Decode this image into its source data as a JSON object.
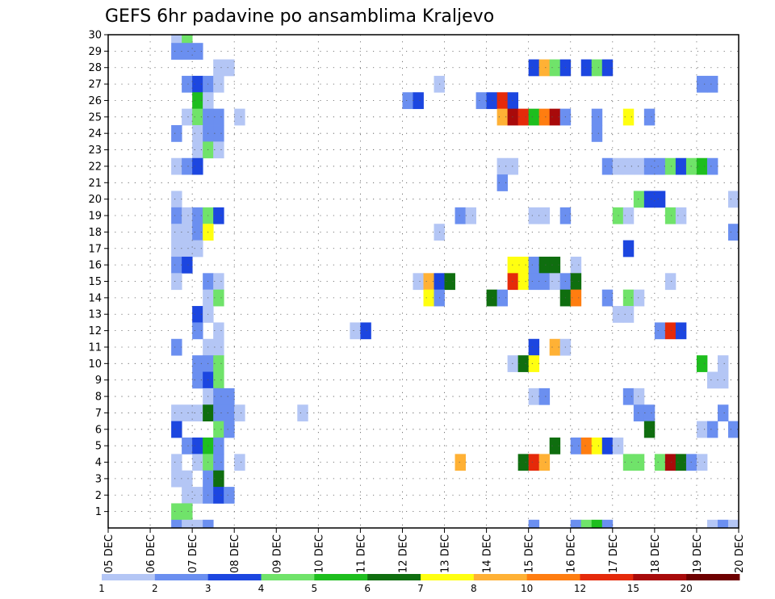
{
  "chart_data": {
    "type": "heatmap",
    "title": "GEFS 6hr padavine po ansamblima Kraljevo",
    "y_tick_labels": [
      "1",
      "2",
      "3",
      "4",
      "5",
      "6",
      "7",
      "8",
      "9",
      "10",
      "11",
      "12",
      "13",
      "14",
      "15",
      "16",
      "17",
      "18",
      "19",
      "20",
      "21",
      "22",
      "23",
      "24",
      "25",
      "26",
      "27",
      "28",
      "29",
      "30"
    ],
    "x_tick_labels": [
      "05 DEC",
      "06 DEC",
      "07 DEC",
      "08 DEC",
      "09 DEC",
      "10 DEC",
      "11 DEC",
      "12 DEC",
      "13 DEC",
      "14 DEC",
      "15 DEC",
      "16 DEC",
      "17 DEC",
      "18 DEC",
      "19 DEC",
      "20 DEC"
    ],
    "grid": true,
    "colorbar": {
      "labels": [
        "1",
        "2",
        "3",
        "4",
        "5",
        "6",
        "7",
        "8",
        "10",
        "12",
        "15",
        "20"
      ],
      "colors": [
        "#b4c6f5",
        "#6b8ff0",
        "#1c46e0",
        "#70e36a",
        "#1ebe1e",
        "#0f6e0f",
        "#ffff10",
        "#ffb135",
        "#ff7d10",
        "#e52a0a",
        "#a80a0a",
        "#6e0000"
      ]
    },
    "cells": [
      [
        6,
        30,
        0
      ],
      [
        7,
        30,
        3
      ],
      [
        6,
        29,
        1
      ],
      [
        7,
        29,
        1
      ],
      [
        8,
        29,
        1
      ],
      [
        10,
        28,
        0
      ],
      [
        11,
        28,
        0
      ],
      [
        40,
        28,
        2
      ],
      [
        41,
        28,
        7
      ],
      [
        42,
        28,
        3
      ],
      [
        43,
        28,
        2
      ],
      [
        45,
        28,
        2
      ],
      [
        46,
        28,
        3
      ],
      [
        47,
        28,
        2
      ],
      [
        7,
        27,
        1
      ],
      [
        8,
        27,
        2
      ],
      [
        9,
        27,
        1
      ],
      [
        10,
        27,
        0
      ],
      [
        31,
        27,
        0
      ],
      [
        56,
        27,
        1
      ],
      [
        57,
        27,
        1
      ],
      [
        8,
        26,
        4
      ],
      [
        9,
        26,
        0
      ],
      [
        28,
        26,
        1
      ],
      [
        29,
        26,
        2
      ],
      [
        35,
        26,
        1
      ],
      [
        36,
        26,
        2
      ],
      [
        37,
        26,
        9
      ],
      [
        38,
        26,
        2
      ],
      [
        7,
        25,
        0
      ],
      [
        8,
        25,
        3
      ],
      [
        9,
        25,
        1
      ],
      [
        10,
        25,
        1
      ],
      [
        12,
        25,
        0
      ],
      [
        37,
        25,
        7
      ],
      [
        38,
        25,
        10
      ],
      [
        39,
        25,
        9
      ],
      [
        40,
        25,
        4
      ],
      [
        41,
        25,
        8
      ],
      [
        42,
        25,
        10
      ],
      [
        43,
        25,
        1
      ],
      [
        46,
        25,
        1
      ],
      [
        49,
        25,
        6
      ],
      [
        51,
        25,
        1
      ],
      [
        6,
        24,
        1
      ],
      [
        8,
        24,
        0
      ],
      [
        9,
        24,
        1
      ],
      [
        10,
        24,
        1
      ],
      [
        46,
        24,
        1
      ],
      [
        8,
        23,
        0
      ],
      [
        9,
        23,
        3
      ],
      [
        10,
        23,
        0
      ],
      [
        6,
        22,
        0
      ],
      [
        7,
        22,
        1
      ],
      [
        8,
        22,
        2
      ],
      [
        37,
        22,
        0
      ],
      [
        38,
        22,
        0
      ],
      [
        47,
        22,
        1
      ],
      [
        48,
        22,
        0
      ],
      [
        49,
        22,
        0
      ],
      [
        50,
        22,
        0
      ],
      [
        51,
        22,
        1
      ],
      [
        52,
        22,
        1
      ],
      [
        53,
        22,
        3
      ],
      [
        54,
        22,
        2
      ],
      [
        55,
        22,
        3
      ],
      [
        56,
        22,
        4
      ],
      [
        57,
        22,
        1
      ],
      [
        37,
        21,
        1
      ],
      [
        6,
        20,
        0
      ],
      [
        50,
        20,
        3
      ],
      [
        51,
        20,
        2
      ],
      [
        52,
        20,
        2
      ],
      [
        59,
        20,
        0
      ],
      [
        6,
        19,
        1
      ],
      [
        7,
        19,
        0
      ],
      [
        8,
        19,
        1
      ],
      [
        9,
        19,
        3
      ],
      [
        10,
        19,
        2
      ],
      [
        33,
        19,
        1
      ],
      [
        34,
        19,
        0
      ],
      [
        40,
        19,
        0
      ],
      [
        41,
        19,
        0
      ],
      [
        43,
        19,
        1
      ],
      [
        48,
        19,
        3
      ],
      [
        49,
        19,
        0
      ],
      [
        53,
        19,
        3
      ],
      [
        54,
        19,
        0
      ],
      [
        6,
        18,
        0
      ],
      [
        7,
        18,
        0
      ],
      [
        8,
        18,
        1
      ],
      [
        9,
        18,
        6
      ],
      [
        31,
        18,
        0
      ],
      [
        59,
        18,
        1
      ],
      [
        6,
        17,
        0
      ],
      [
        7,
        17,
        0
      ],
      [
        8,
        17,
        0
      ],
      [
        49,
        17,
        2
      ],
      [
        6,
        16,
        1
      ],
      [
        7,
        16,
        2
      ],
      [
        38,
        16,
        6
      ],
      [
        39,
        16,
        6
      ],
      [
        40,
        16,
        1
      ],
      [
        41,
        16,
        5
      ],
      [
        42,
        16,
        5
      ],
      [
        44,
        16,
        0
      ],
      [
        6,
        15,
        0
      ],
      [
        9,
        15,
        1
      ],
      [
        10,
        15,
        0
      ],
      [
        29,
        15,
        0
      ],
      [
        30,
        15,
        7
      ],
      [
        31,
        15,
        2
      ],
      [
        32,
        15,
        5
      ],
      [
        38,
        15,
        9
      ],
      [
        39,
        15,
        6
      ],
      [
        40,
        15,
        1
      ],
      [
        41,
        15,
        1
      ],
      [
        42,
        15,
        0
      ],
      [
        43,
        15,
        1
      ],
      [
        44,
        15,
        5
      ],
      [
        53,
        15,
        0
      ],
      [
        9,
        14,
        0
      ],
      [
        10,
        14,
        3
      ],
      [
        30,
        14,
        6
      ],
      [
        31,
        14,
        1
      ],
      [
        36,
        14,
        5
      ],
      [
        37,
        14,
        1
      ],
      [
        43,
        14,
        5
      ],
      [
        44,
        14,
        8
      ],
      [
        47,
        14,
        1
      ],
      [
        49,
        14,
        3
      ],
      [
        50,
        14,
        0
      ],
      [
        8,
        13,
        2
      ],
      [
        9,
        13,
        0
      ],
      [
        48,
        13,
        0
      ],
      [
        49,
        13,
        0
      ],
      [
        8,
        12,
        1
      ],
      [
        10,
        12,
        0
      ],
      [
        23,
        12,
        0
      ],
      [
        24,
        12,
        2
      ],
      [
        52,
        12,
        1
      ],
      [
        53,
        12,
        9
      ],
      [
        54,
        12,
        2
      ],
      [
        6,
        11,
        1
      ],
      [
        9,
        11,
        0
      ],
      [
        10,
        11,
        0
      ],
      [
        40,
        11,
        2
      ],
      [
        42,
        11,
        7
      ],
      [
        43,
        11,
        0
      ],
      [
        8,
        10,
        1
      ],
      [
        9,
        10,
        1
      ],
      [
        10,
        10,
        3
      ],
      [
        38,
        10,
        0
      ],
      [
        39,
        10,
        5
      ],
      [
        40,
        10,
        6
      ],
      [
        56,
        10,
        4
      ],
      [
        58,
        10,
        0
      ],
      [
        8,
        9,
        1
      ],
      [
        9,
        9,
        2
      ],
      [
        10,
        9,
        3
      ],
      [
        57,
        9,
        0
      ],
      [
        58,
        9,
        0
      ],
      [
        60,
        9,
        0
      ],
      [
        9,
        8,
        0
      ],
      [
        10,
        8,
        1
      ],
      [
        11,
        8,
        1
      ],
      [
        40,
        8,
        0
      ],
      [
        41,
        8,
        1
      ],
      [
        49,
        8,
        1
      ],
      [
        50,
        8,
        0
      ],
      [
        6,
        7,
        0
      ],
      [
        7,
        7,
        0
      ],
      [
        8,
        7,
        0
      ],
      [
        9,
        7,
        5
      ],
      [
        10,
        7,
        1
      ],
      [
        11,
        7,
        1
      ],
      [
        12,
        7,
        0
      ],
      [
        18,
        7,
        0
      ],
      [
        50,
        7,
        1
      ],
      [
        51,
        7,
        1
      ],
      [
        58,
        7,
        1
      ],
      [
        60,
        7,
        1
      ],
      [
        6,
        6,
        2
      ],
      [
        10,
        6,
        3
      ],
      [
        11,
        6,
        1
      ],
      [
        51,
        6,
        5
      ],
      [
        56,
        6,
        0
      ],
      [
        57,
        6,
        1
      ],
      [
        59,
        6,
        1
      ],
      [
        60,
        6,
        1
      ],
      [
        7,
        5,
        1
      ],
      [
        8,
        5,
        2
      ],
      [
        9,
        5,
        4
      ],
      [
        10,
        5,
        1
      ],
      [
        42,
        5,
        5
      ],
      [
        44,
        5,
        1
      ],
      [
        45,
        5,
        8
      ],
      [
        46,
        5,
        6
      ],
      [
        47,
        5,
        2
      ],
      [
        48,
        5,
        0
      ],
      [
        6,
        4,
        0
      ],
      [
        8,
        4,
        0
      ],
      [
        9,
        4,
        3
      ],
      [
        10,
        4,
        1
      ],
      [
        12,
        4,
        0
      ],
      [
        33,
        4,
        7
      ],
      [
        39,
        4,
        5
      ],
      [
        40,
        4,
        9
      ],
      [
        41,
        4,
        7
      ],
      [
        49,
        4,
        3
      ],
      [
        50,
        4,
        3
      ],
      [
        52,
        4,
        3
      ],
      [
        53,
        4,
        10
      ],
      [
        54,
        4,
        5
      ],
      [
        55,
        4,
        1
      ],
      [
        56,
        4,
        0
      ],
      [
        6,
        3,
        0
      ],
      [
        7,
        3,
        0
      ],
      [
        9,
        3,
        1
      ],
      [
        10,
        3,
        5
      ],
      [
        7,
        2,
        0
      ],
      [
        8,
        2,
        0
      ],
      [
        9,
        2,
        1
      ],
      [
        10,
        2,
        2
      ],
      [
        11,
        2,
        1
      ],
      [
        6,
        1,
        3
      ],
      [
        7,
        1,
        3
      ],
      [
        6,
        0,
        1
      ],
      [
        7,
        0,
        0
      ],
      [
        8,
        0,
        0
      ],
      [
        9,
        0,
        1
      ],
      [
        40,
        0,
        1
      ],
      [
        44,
        0,
        1
      ],
      [
        45,
        0,
        3
      ],
      [
        46,
        0,
        4
      ],
      [
        47,
        0,
        1
      ],
      [
        57,
        0,
        0
      ],
      [
        58,
        0,
        1
      ],
      [
        59,
        0,
        0
      ]
    ]
  }
}
